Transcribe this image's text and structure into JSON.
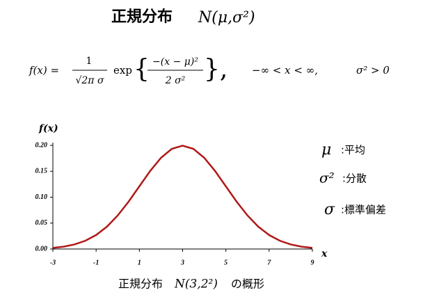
{
  "header": {
    "title": "正規分布",
    "notation": "N(μ,σ²)"
  },
  "formula": {
    "lhs": "f(x) =",
    "coef_num": "1",
    "coef_den": "√2π σ",
    "exp": "exp",
    "open_brace": "{",
    "exp_num": "−(x − μ)²",
    "exp_den": "2 σ²",
    "close_brace": "},",
    "domain": "−∞ < x < ∞,",
    "condition": "σ² > 0"
  },
  "chart_data": {
    "type": "line",
    "y_label": "f(x)",
    "x_label": "x",
    "x": [
      -3,
      -2.5,
      -2,
      -1.5,
      -1,
      -0.5,
      0,
      0.5,
      1,
      1.5,
      2,
      2.5,
      3,
      3.5,
      4,
      4.5,
      5,
      5.5,
      6,
      6.5,
      7,
      7.5,
      8,
      8.5,
      9
    ],
    "series": [
      {
        "color": "#b01818",
        "values": [
          0.0022,
          0.0045,
          0.0088,
          0.0159,
          0.027,
          0.0431,
          0.0648,
          0.0913,
          0.121,
          0.1506,
          0.176,
          0.1933,
          0.1995,
          0.1933,
          0.176,
          0.1506,
          0.121,
          0.0913,
          0.0648,
          0.0431,
          0.027,
          0.0159,
          0.0088,
          0.0045,
          0.0022
        ]
      }
    ],
    "xlim": [
      -3,
      9
    ],
    "ylim": [
      0,
      0.2
    ],
    "xticks": [
      -3,
      -1,
      1,
      3,
      5,
      7,
      9
    ],
    "yticks": [
      {
        "value": 0,
        "label": "0.00"
      },
      {
        "value": 0.05,
        "label": "0.05"
      },
      {
        "value": 0.1,
        "label": "0.10"
      },
      {
        "value": 0.15,
        "label": "0.15"
      },
      {
        "value": 0.2,
        "label": "0.20"
      }
    ]
  },
  "legend": [
    {
      "symbol": "μ",
      "meaning": ":平均"
    },
    {
      "symbol": "σ²",
      "meaning": ":分散"
    },
    {
      "symbol": "σ",
      "meaning": ":標準偏差"
    }
  ],
  "caption": {
    "text": "正規分布",
    "notation": "N(3,2²)",
    "suffix": "の概形"
  }
}
